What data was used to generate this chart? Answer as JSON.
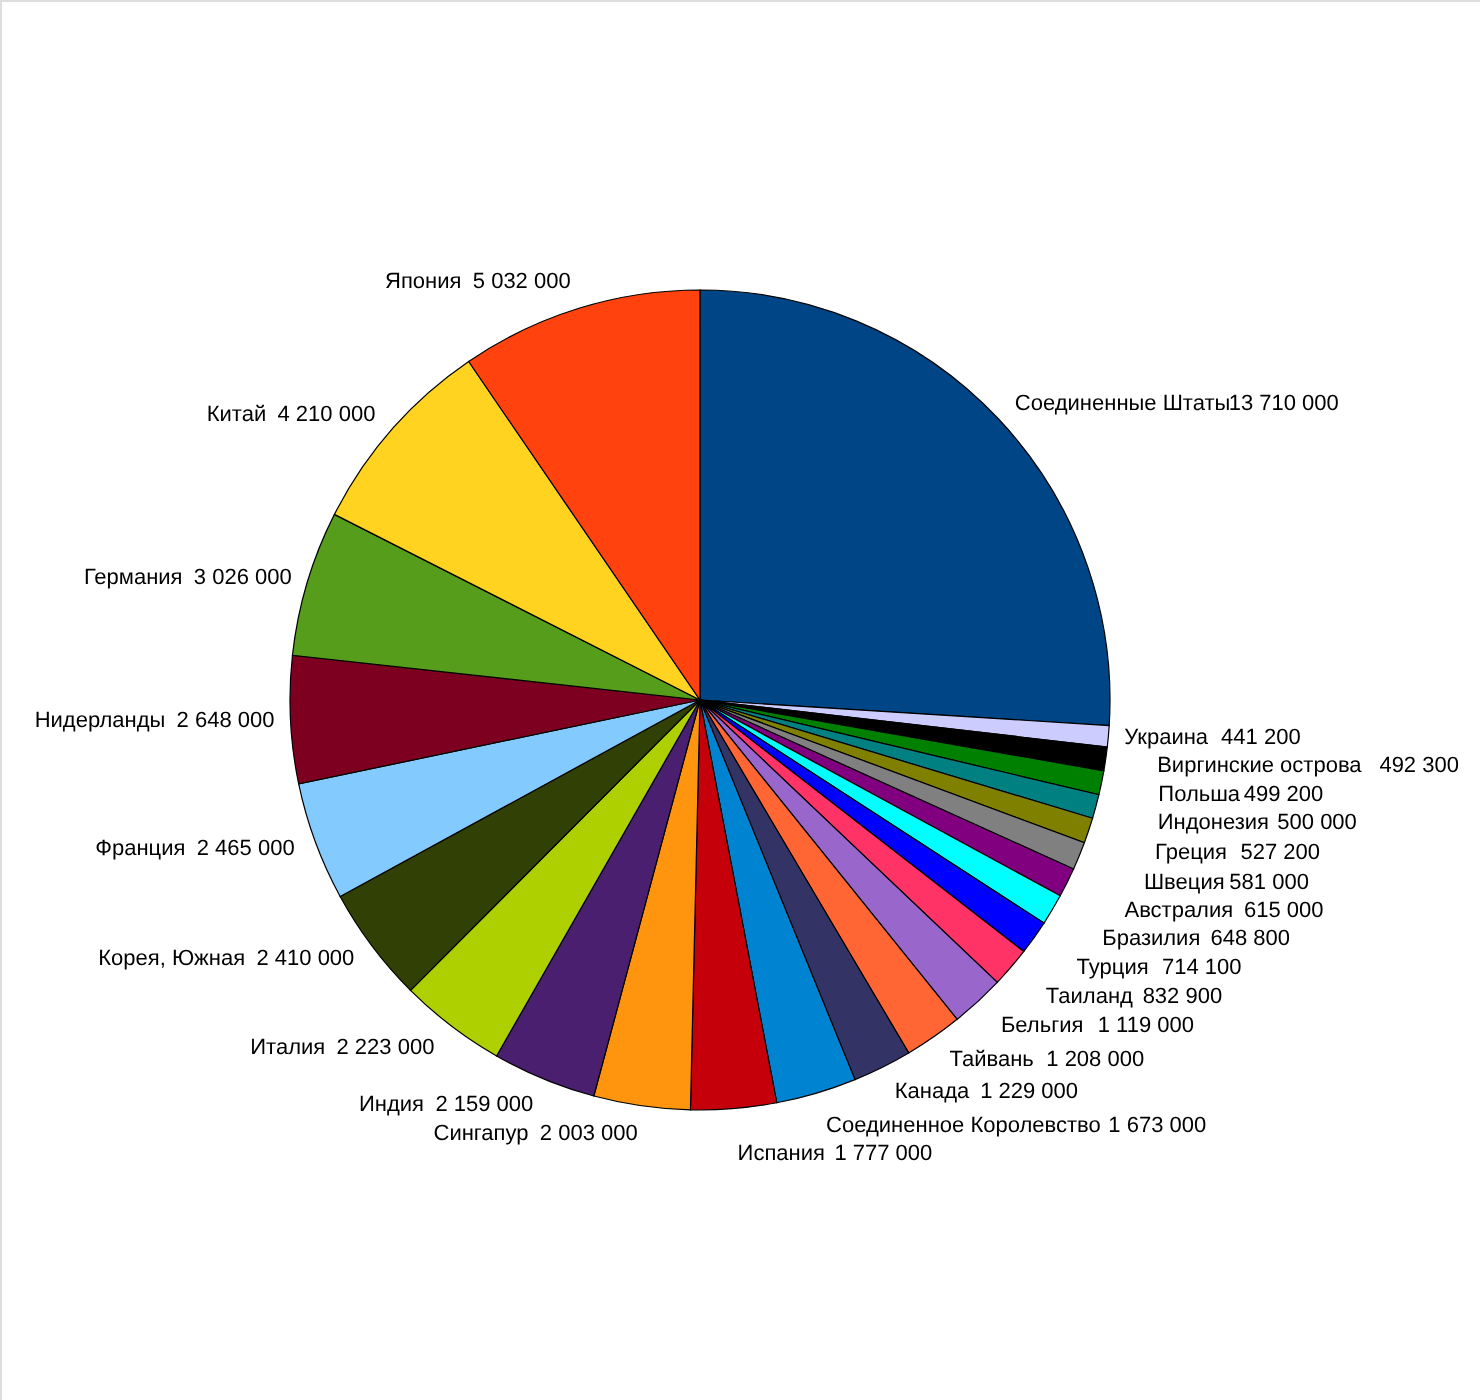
{
  "chart_data": {
    "type": "pie",
    "categories": [
      "Соединенные Штаты",
      "Украина",
      "Виргинские острова",
      "Польша",
      "Индонезия",
      "Греция",
      "Швеция",
      "Австралия",
      "Бразилия",
      "Турция",
      "Таиланд",
      "Бельгия",
      "Тайвань",
      "Канада",
      "Соединенное Королевство",
      "Испания",
      "Сингапур",
      "Индия",
      "Италия",
      "Корея, Южная",
      "Франция",
      "Нидерланды",
      "Германия",
      "Китай",
      "Япония"
    ],
    "values": [
      13710000,
      441200,
      492300,
      499200,
      500000,
      527200,
      581000,
      615000,
      648800,
      714100,
      832900,
      1119000,
      1208000,
      1229000,
      1673000,
      1777000,
      2003000,
      2159000,
      2223000,
      2410000,
      2465000,
      2648000,
      3026000,
      4210000,
      5032000
    ],
    "colors": [
      "#004586",
      "#ccccff",
      "#000000",
      "#008000",
      "#008080",
      "#808000",
      "#808080",
      "#800080",
      "#00ffff",
      "#0000ff",
      "#ff3366",
      "#9966cc",
      "#ff6633",
      "#333366",
      "#0084d1",
      "#c5000b",
      "#ff950e",
      "#4b1f6f",
      "#aecf00",
      "#314004",
      "#83caff",
      "#7e0021",
      "#579d1c",
      "#ffd320",
      "#ff420e"
    ],
    "data_labels": true
  }
}
